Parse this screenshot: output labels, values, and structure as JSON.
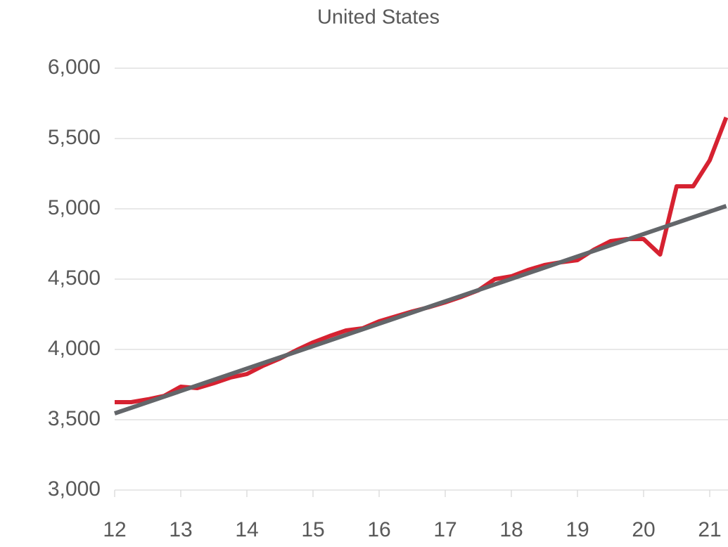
{
  "chart_data": {
    "type": "line",
    "title": "United States",
    "x": [
      12,
      12.25,
      12.5,
      12.75,
      13,
      13.25,
      13.5,
      13.75,
      14,
      14.25,
      14.5,
      14.75,
      15,
      15.25,
      15.5,
      15.75,
      16,
      16.25,
      16.5,
      16.75,
      17,
      17.25,
      17.5,
      17.75,
      18,
      18.25,
      18.5,
      18.75,
      19,
      19.25,
      19.5,
      19.75,
      20,
      20.25,
      20.5,
      20.75,
      21,
      21.25
    ],
    "series": [
      {
        "color": "#d62231",
        "values": [
          3625,
          3625,
          3645,
          3670,
          3735,
          3725,
          3760,
          3800,
          3825,
          3885,
          3935,
          3995,
          4050,
          4095,
          4135,
          4150,
          4200,
          4235,
          4270,
          4300,
          4335,
          4375,
          4420,
          4500,
          4520,
          4565,
          4600,
          4620,
          4635,
          4710,
          4770,
          4785,
          4785,
          4675,
          5160,
          5160,
          5345,
          5650
        ]
      },
      {
        "color": "#63666a",
        "x": [
          12,
          21.25
        ],
        "values": [
          3545,
          5020
        ]
      }
    ],
    "xlim": [
      12,
      21.28
    ],
    "xticks": [
      12,
      13,
      14,
      15,
      16,
      17,
      18,
      19,
      20,
      21
    ],
    "ylim": [
      3000,
      6000
    ],
    "yticks": [
      {
        "value": 3000,
        "label": "3,000"
      },
      {
        "value": 3500,
        "label": "3,500"
      },
      {
        "value": 4000,
        "label": "4,000"
      },
      {
        "value": 4500,
        "label": "4,500"
      },
      {
        "value": 5000,
        "label": "5,000"
      },
      {
        "value": 5500,
        "label": "5,500"
      },
      {
        "value": 6000,
        "label": "6,000"
      }
    ],
    "grid": true
  }
}
